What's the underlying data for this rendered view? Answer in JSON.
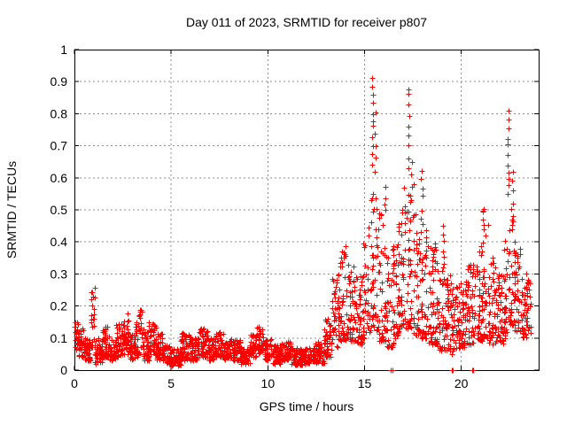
{
  "chart_data": {
    "type": "scatter",
    "title": "Day 011 of 2023, SRMTID for receiver p807",
    "xlabel": "GPS time / hours",
    "ylabel": "SRMTID / TECUs",
    "xlim": [
      0,
      24
    ],
    "ylim": [
      0,
      1
    ],
    "xticks": {
      "values": [
        0,
        5,
        10,
        15,
        20
      ],
      "labels": [
        "0",
        "5",
        "10",
        "15",
        "20"
      ]
    },
    "yticks": {
      "values": [
        0,
        0.1,
        0.2,
        0.3,
        0.4,
        0.5,
        0.6,
        0.7,
        0.8,
        0.9,
        1
      ],
      "labels": [
        "0",
        "0.1",
        "0.2",
        "0.3",
        "0.4",
        "0.5",
        "0.6",
        "0.7",
        "0.8",
        "0.9",
        "1"
      ]
    },
    "grid": {
      "on": true,
      "x_values": [
        5,
        10,
        15,
        20
      ],
      "y_values": [
        0.1,
        0.2,
        0.3,
        0.4,
        0.5,
        0.6,
        0.7,
        0.8,
        0.9
      ]
    },
    "legend": "none",
    "marker": {
      "shape": "plus",
      "size": 7,
      "color": "#ff0000"
    },
    "colors": {
      "marker": "#ff0000",
      "grid": "#8c8c8c",
      "axis": "#000000",
      "background": "#ffffff",
      "text": "#000000"
    },
    "series_name": "SRMTID",
    "density_per_hour": 110,
    "seed": 11,
    "envelope": [
      [
        0.0,
        0.2,
        0.06,
        0.17
      ],
      [
        0.2,
        0.5,
        0.04,
        0.13
      ],
      [
        0.5,
        0.85,
        0.03,
        0.1
      ],
      [
        0.85,
        1.05,
        0.06,
        0.26
      ],
      [
        1.05,
        1.45,
        0.02,
        0.1
      ],
      [
        1.45,
        1.85,
        0.04,
        0.14
      ],
      [
        1.85,
        2.15,
        0.03,
        0.1
      ],
      [
        2.15,
        2.5,
        0.04,
        0.15
      ],
      [
        2.5,
        2.85,
        0.05,
        0.18
      ],
      [
        2.85,
        3.15,
        0.03,
        0.11
      ],
      [
        3.15,
        3.55,
        0.04,
        0.19
      ],
      [
        3.55,
        3.85,
        0.03,
        0.12
      ],
      [
        3.85,
        4.2,
        0.04,
        0.15
      ],
      [
        4.2,
        4.6,
        0.03,
        0.12
      ],
      [
        4.6,
        5.0,
        0.02,
        0.08
      ],
      [
        5.0,
        5.5,
        0.015,
        0.07
      ],
      [
        5.5,
        6.0,
        0.03,
        0.12
      ],
      [
        6.0,
        6.4,
        0.03,
        0.1
      ],
      [
        6.4,
        6.9,
        0.04,
        0.13
      ],
      [
        6.9,
        7.3,
        0.03,
        0.1
      ],
      [
        7.3,
        7.7,
        0.04,
        0.12
      ],
      [
        7.7,
        8.1,
        0.03,
        0.1
      ],
      [
        8.1,
        8.6,
        0.03,
        0.1
      ],
      [
        8.6,
        9.1,
        0.02,
        0.08
      ],
      [
        9.1,
        9.4,
        0.04,
        0.11
      ],
      [
        9.4,
        9.8,
        0.05,
        0.14
      ],
      [
        9.8,
        10.2,
        0.03,
        0.1
      ],
      [
        10.2,
        10.7,
        0.02,
        0.08
      ],
      [
        10.7,
        11.2,
        0.03,
        0.09
      ],
      [
        11.2,
        11.8,
        0.015,
        0.07
      ],
      [
        11.8,
        12.4,
        0.02,
        0.07
      ],
      [
        12.4,
        12.9,
        0.02,
        0.09
      ],
      [
        12.9,
        13.3,
        0.04,
        0.16
      ],
      [
        13.3,
        13.7,
        0.07,
        0.3
      ],
      [
        13.7,
        14.1,
        0.09,
        0.42
      ],
      [
        14.1,
        14.5,
        0.09,
        0.33
      ],
      [
        14.5,
        14.9,
        0.08,
        0.3
      ],
      [
        14.9,
        15.2,
        0.1,
        0.45
      ],
      [
        15.2,
        15.7,
        0.12,
        0.58
      ],
      [
        15.7,
        16.1,
        0.09,
        0.5
      ],
      [
        16.1,
        16.5,
        0.07,
        0.4
      ],
      [
        16.5,
        16.9,
        0.1,
        0.46
      ],
      [
        16.9,
        17.55,
        0.13,
        0.6
      ],
      [
        17.55,
        17.9,
        0.11,
        0.5
      ],
      [
        17.9,
        18.3,
        0.1,
        0.48
      ],
      [
        18.3,
        18.7,
        0.08,
        0.42
      ],
      [
        18.7,
        19.1,
        0.06,
        0.36
      ],
      [
        19.1,
        19.5,
        0.05,
        0.3
      ],
      [
        19.5,
        19.9,
        0.06,
        0.26
      ],
      [
        19.9,
        20.3,
        0.07,
        0.28
      ],
      [
        20.3,
        20.7,
        0.08,
        0.33
      ],
      [
        20.7,
        21.1,
        0.09,
        0.42
      ],
      [
        21.1,
        21.4,
        0.1,
        0.5
      ],
      [
        21.4,
        21.8,
        0.08,
        0.35
      ],
      [
        21.8,
        22.2,
        0.08,
        0.3
      ],
      [
        22.2,
        22.45,
        0.1,
        0.45
      ],
      [
        22.45,
        22.75,
        0.14,
        0.52
      ],
      [
        22.75,
        23.1,
        0.12,
        0.38
      ],
      [
        23.1,
        23.6,
        0.1,
        0.3
      ]
    ],
    "spikes": [
      {
        "t": 15.42,
        "values": [
          0.91,
          0.88,
          0.86,
          0.83,
          0.8,
          0.78,
          0.76,
          0.73,
          0.7,
          0.67,
          0.64
        ]
      },
      {
        "t": 15.55,
        "values": [
          0.8,
          0.74,
          0.7,
          0.66,
          0.62
        ]
      },
      {
        "t": 16.05,
        "values": [
          0.57,
          0.54,
          0.52
        ]
      },
      {
        "t": 17.28,
        "values": [
          0.88,
          0.86,
          0.83,
          0.79,
          0.76,
          0.73,
          0.7,
          0.66,
          0.63
        ]
      },
      {
        "t": 17.42,
        "values": [
          0.65,
          0.61,
          0.57,
          0.53
        ]
      },
      {
        "t": 17.95,
        "values": [
          0.62,
          0.6,
          0.57,
          0.54,
          0.5,
          0.47
        ]
      },
      {
        "t": 19.05,
        "values": [
          0.45,
          0.42,
          0.4,
          0.37
        ]
      },
      {
        "t": 21.15,
        "values": [
          0.5,
          0.47,
          0.44
        ]
      },
      {
        "t": 22.42,
        "values": [
          0.81,
          0.78,
          0.75,
          0.72,
          0.7,
          0.67,
          0.64,
          0.62,
          0.6,
          0.58,
          0.55
        ]
      },
      {
        "t": 22.65,
        "values": [
          0.62,
          0.59,
          0.56,
          0.52,
          0.48,
          0.45
        ]
      }
    ],
    "zero_points": [
      16.37,
      16.43,
      19.5,
      19.56,
      20.55,
      20.62
    ]
  }
}
